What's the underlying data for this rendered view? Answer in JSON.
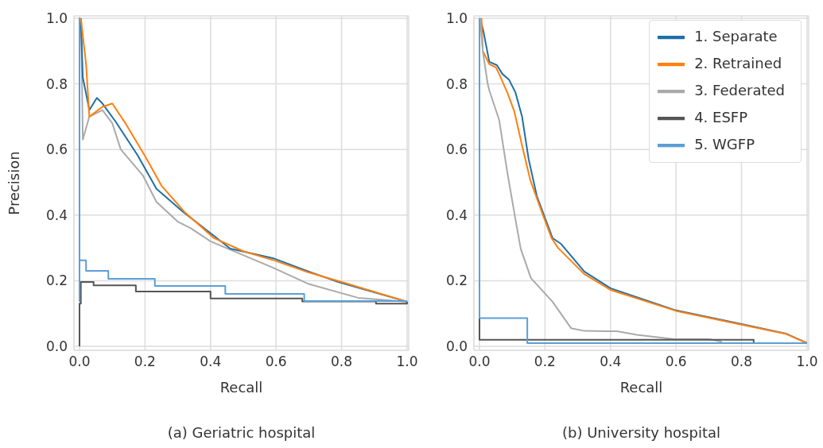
{
  "chart_data": [
    {
      "type": "line",
      "title": "(a) Geriatric hospital",
      "xlabel": "Recall",
      "ylabel": "Precision",
      "xlim": [
        -0.017,
        1.005
      ],
      "ylim": [
        -0.012,
        1.007
      ],
      "xticks": [
        {
          "value": 0,
          "label": "0.0"
        },
        {
          "value": 0.2,
          "label": "0.2"
        },
        {
          "value": 0.4,
          "label": "0.4"
        },
        {
          "value": 0.6,
          "label": "0.6"
        },
        {
          "value": 0.8,
          "label": "0.8"
        },
        {
          "value": 1,
          "label": "1.0"
        }
      ],
      "yticks": [
        {
          "value": 0,
          "label": "0.0"
        },
        {
          "value": 0.2,
          "label": "0.2"
        },
        {
          "value": 0.4,
          "label": "0.4"
        },
        {
          "value": 0.6,
          "label": "0.6"
        },
        {
          "value": 0.8,
          "label": "0.8"
        },
        {
          "value": 1,
          "label": "1.0"
        }
      ],
      "grid": true,
      "legend": false,
      "series": [
        {
          "color": "#aaaaaa",
          "x": [
            0.005,
            0.01,
            0.03,
            0.07,
            0.1,
            0.126,
            0.194,
            0.235,
            0.3,
            0.34,
            0.4,
            0.59,
            0.7,
            0.85,
            1.0
          ],
          "values": [
            1.0,
            0.63,
            0.7,
            0.72,
            0.68,
            0.6,
            0.52,
            0.44,
            0.38,
            0.36,
            0.32,
            0.24,
            0.19,
            0.148,
            0.136
          ]
        },
        {
          "color": "#1f6fa8",
          "x": [
            0.004,
            0.01,
            0.03,
            0.053,
            0.07,
            0.11,
            0.177,
            0.235,
            0.316,
            0.41,
            0.46,
            0.59,
            0.7,
            0.79,
            1.0
          ],
          "values": [
            1.0,
            0.82,
            0.72,
            0.757,
            0.74,
            0.685,
            0.583,
            0.48,
            0.41,
            0.337,
            0.298,
            0.269,
            0.228,
            0.196,
            0.136
          ]
        },
        {
          "color": "#ff7f0e",
          "x": [
            0.004,
            0.02,
            0.03,
            0.07,
            0.1,
            0.14,
            0.2,
            0.25,
            0.32,
            0.41,
            0.5,
            0.6,
            0.7,
            0.8,
            1.0
          ],
          "values": [
            1.0,
            0.86,
            0.7,
            0.73,
            0.74,
            0.68,
            0.58,
            0.49,
            0.41,
            0.33,
            0.29,
            0.26,
            0.225,
            0.196,
            0.136
          ]
        },
        {
          "type": "step",
          "color": "#555555",
          "x": [
            0,
            0,
            0.004,
            0.043,
            0.172,
            0.4,
            0.68,
            0.905,
            1.0
          ],
          "values": [
            0,
            0.13,
            0.196,
            0.186,
            0.167,
            0.146,
            0.137,
            0.13,
            0.136
          ]
        },
        {
          "type": "step",
          "color": "#5b9fd8",
          "x": [
            0,
            0,
            0,
            0.02,
            0.088,
            0.23,
            0.445,
            0.686,
            1.0
          ],
          "values": [
            0.136,
            1.0,
            0.262,
            0.23,
            0.206,
            0.184,
            0.16,
            0.138,
            0.138
          ]
        }
      ]
    },
    {
      "type": "line",
      "title": "(b) University hospital",
      "xlabel": "Recall",
      "xlim": [
        -0.017,
        1.005
      ],
      "ylim": [
        -0.012,
        1.007
      ],
      "xticks": [
        {
          "value": 0,
          "label": "0.0"
        },
        {
          "value": 0.2,
          "label": "0.2"
        },
        {
          "value": 0.4,
          "label": "0.4"
        },
        {
          "value": 0.6,
          "label": "0.6"
        },
        {
          "value": 0.8,
          "label": "0.8"
        },
        {
          "value": 1,
          "label": "1.0"
        }
      ],
      "yticks": [
        {
          "value": 0,
          "label": "0.0"
        },
        {
          "value": 0.2,
          "label": "0.2"
        },
        {
          "value": 0.4,
          "label": "0.4"
        },
        {
          "value": 0.6,
          "label": "0.6"
        },
        {
          "value": 0.8,
          "label": "0.8"
        },
        {
          "value": 1,
          "label": "1.0"
        }
      ],
      "grid": true,
      "legend": "top right",
      "series": [
        {
          "name": "1. Separate",
          "color": "#1f6fa8",
          "x": [
            0.002,
            0.012,
            0.03,
            0.053,
            0.07,
            0.09,
            0.11,
            0.13,
            0.15,
            0.175,
            0.223,
            0.248,
            0.32,
            0.4,
            0.595,
            0.8,
            0.935,
            1.0
          ],
          "values": [
            1.0,
            0.96,
            0.867,
            0.857,
            0.83,
            0.813,
            0.773,
            0.7,
            0.571,
            0.458,
            0.33,
            0.313,
            0.228,
            0.177,
            0.111,
            0.068,
            0.039,
            0.01
          ]
        },
        {
          "name": "2. Retrained",
          "color": "#ff7f0e",
          "x": [
            0.006,
            0.01,
            0.03,
            0.05,
            0.06,
            0.085,
            0.106,
            0.13,
            0.155,
            0.19,
            0.22,
            0.24,
            0.32,
            0.4,
            0.6,
            0.8,
            0.935,
            1.0
          ],
          "values": [
            1.0,
            0.9,
            0.86,
            0.85,
            0.83,
            0.773,
            0.717,
            0.612,
            0.507,
            0.41,
            0.33,
            0.3,
            0.22,
            0.172,
            0.108,
            0.066,
            0.038,
            0.01
          ]
        },
        {
          "name": "3. Federated",
          "color": "#aaaaaa",
          "x": [
            0.002,
            0.01,
            0.025,
            0.03,
            0.06,
            0.085,
            0.11,
            0.126,
            0.157,
            0.223,
            0.28,
            0.32,
            0.42,
            0.48,
            0.595,
            0.7,
            0.74
          ],
          "values": [
            1.0,
            0.9,
            0.8,
            0.78,
            0.69,
            0.53,
            0.386,
            0.297,
            0.208,
            0.136,
            0.055,
            0.047,
            0.046,
            0.035,
            0.022,
            0.022,
            0.014
          ]
        },
        {
          "name": "4. ESFP",
          "type": "step",
          "color": "#555555",
          "x": [
            0,
            0,
            0.837
          ],
          "values": [
            0.086,
            0.02,
            0.012
          ]
        },
        {
          "name": "5. WGFP",
          "type": "step",
          "color": "#5b9fd8",
          "x": [
            0,
            0,
            0.146,
            1.0
          ],
          "values": [
            1.0,
            0.086,
            0.01,
            0.01
          ]
        }
      ]
    }
  ]
}
